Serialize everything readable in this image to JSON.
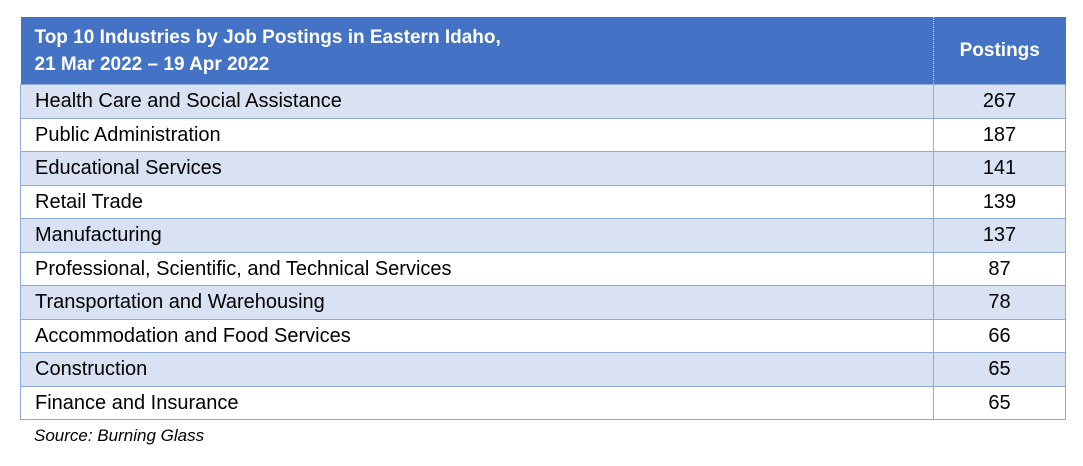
{
  "table": {
    "title_line1": "Top 10 Industries by Job Postings in Eastern Idaho,",
    "title_line2": "21 Mar 2022 – 19 Apr 2022",
    "value_header": "Postings",
    "rows": [
      {
        "industry": "Health Care and Social Assistance",
        "postings": "267"
      },
      {
        "industry": "Public Administration",
        "postings": "187"
      },
      {
        "industry": "Educational Services",
        "postings": "141"
      },
      {
        "industry": "Retail Trade",
        "postings": "139"
      },
      {
        "industry": "Manufacturing",
        "postings": "137"
      },
      {
        "industry": "Professional, Scientific, and Technical Services",
        "postings": "87"
      },
      {
        "industry": "Transportation and Warehousing",
        "postings": "78"
      },
      {
        "industry": "Accommodation and Food Services",
        "postings": "66"
      },
      {
        "industry": "Construction",
        "postings": "65"
      },
      {
        "industry": "Finance and Insurance",
        "postings": "65"
      }
    ]
  },
  "source": "Source: Burning Glass",
  "colors": {
    "header": "#4472c4",
    "band": "#d9e2f3",
    "border": "#8eaadb"
  }
}
